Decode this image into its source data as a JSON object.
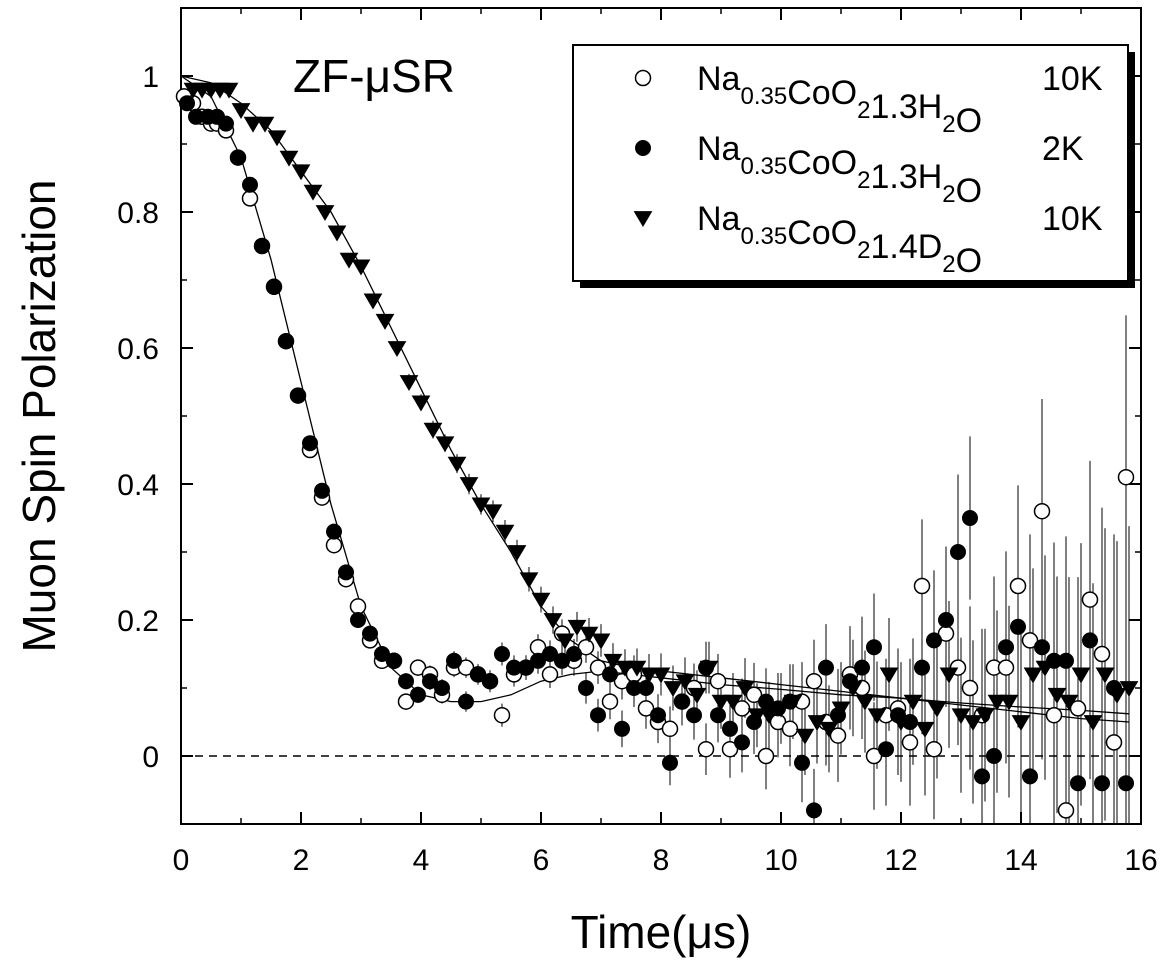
{
  "chart_data": {
    "type": "scatter",
    "title": "",
    "annotation": "ZF-μSR",
    "xlabel": "Time(μs)",
    "ylabel": "Muon Spin Polarization",
    "xlim": [
      0,
      16
    ],
    "ylim": [
      -0.1,
      1.1
    ],
    "xticks": [
      "0",
      "2",
      "4",
      "6",
      "8",
      "10",
      "12",
      "14",
      "16"
    ],
    "yticks": [
      "0",
      "0.2",
      "0.4",
      "0.6",
      "0.8",
      "1"
    ],
    "xtick_values": [
      0,
      2,
      4,
      6,
      8,
      10,
      12,
      14,
      16
    ],
    "ytick_values": [
      0,
      0.2,
      0.4,
      0.6,
      0.8,
      1.0
    ],
    "zero_line": "dashed",
    "grid": false,
    "legend_position": "top-right",
    "series": [
      {
        "key": "h2o_10k",
        "marker": "open-circle",
        "legend": {
          "a": "Na",
          "a_sub": "0.35",
          "b": "CoO",
          "b_sub": "2",
          "c": "1.3H",
          "c_sub": "2",
          "d": "O",
          "temp": "10K"
        },
        "x": [
          0.05,
          0.2,
          0.35,
          0.5,
          0.6,
          0.75,
          0.95,
          1.15,
          1.35,
          1.55,
          1.75,
          1.95,
          2.15,
          2.35,
          2.55,
          2.75,
          2.95,
          3.15,
          3.35,
          3.55,
          3.75,
          3.95,
          4.15,
          4.35,
          4.55,
          4.75,
          4.95,
          5.15,
          5.35,
          5.55,
          5.75,
          5.95,
          6.15,
          6.35,
          6.55,
          6.75,
          6.95,
          7.15,
          7.35,
          7.55,
          7.75,
          7.95,
          8.15,
          8.35,
          8.55,
          8.75,
          8.95,
          9.15,
          9.35,
          9.55,
          9.75,
          9.95,
          10.15,
          10.35,
          10.55,
          10.75,
          10.95,
          11.15,
          11.35,
          11.55,
          11.75,
          11.95,
          12.15,
          12.35,
          12.55,
          12.75,
          12.95,
          13.15,
          13.35,
          13.55,
          13.75,
          13.95,
          14.15,
          14.35,
          14.55,
          14.75,
          14.95,
          15.15,
          15.35,
          15.55,
          15.75
        ],
        "y": [
          0.97,
          0.96,
          0.94,
          0.93,
          0.93,
          0.92,
          0.88,
          0.82,
          0.75,
          0.69,
          0.61,
          0.53,
          0.45,
          0.38,
          0.31,
          0.26,
          0.22,
          0.17,
          0.14,
          0.14,
          0.08,
          0.13,
          0.12,
          0.09,
          0.13,
          0.13,
          0.12,
          0.11,
          0.06,
          0.12,
          0.13,
          0.16,
          0.12,
          0.18,
          0.14,
          0.16,
          0.13,
          0.08,
          0.11,
          0.12,
          0.07,
          0.05,
          0.04,
          0.08,
          0.1,
          0.01,
          0.11,
          0.01,
          0.07,
          0.09,
          0.0,
          0.05,
          0.04,
          0.08,
          0.11,
          0.05,
          0.03,
          0.12,
          0.1,
          0.0,
          0.06,
          0.07,
          0.02,
          0.25,
          0.01,
          0.18,
          0.13,
          0.1,
          0.06,
          0.13,
          0.13,
          0.25,
          0.17,
          0.36,
          0.06,
          -0.08,
          0.07,
          0.23,
          0.15,
          0.02,
          0.41
        ],
        "err": [
          0.005,
          0.005,
          0.005,
          0.005,
          0.006,
          0.006,
          0.006,
          0.007,
          0.007,
          0.007,
          0.008,
          0.008,
          0.008,
          0.009,
          0.009,
          0.009,
          0.01,
          0.01,
          0.011,
          0.011,
          0.012,
          0.012,
          0.013,
          0.013,
          0.014,
          0.015,
          0.015,
          0.016,
          0.017,
          0.018,
          0.018,
          0.019,
          0.02,
          0.021,
          0.022,
          0.023,
          0.024,
          0.026,
          0.027,
          0.028,
          0.03,
          0.031,
          0.033,
          0.035,
          0.036,
          0.038,
          0.04,
          0.042,
          0.044,
          0.047,
          0.049,
          0.052,
          0.055,
          0.058,
          0.061,
          0.064,
          0.068,
          0.071,
          0.075,
          0.079,
          0.083,
          0.088,
          0.093,
          0.098,
          0.103,
          0.108,
          0.114,
          0.12,
          0.127,
          0.134,
          0.141,
          0.148,
          0.156,
          0.165,
          0.174,
          0.183,
          0.193,
          0.204,
          0.215,
          0.226,
          0.238
        ]
      },
      {
        "key": "h2o_2k",
        "marker": "filled-circle",
        "legend": {
          "a": "Na",
          "a_sub": "0.35",
          "b": "CoO",
          "b_sub": "2",
          "c": "1.3H",
          "c_sub": "2",
          "d": "O",
          "temp": "2K"
        },
        "x": [
          0.1,
          0.25,
          0.45,
          0.6,
          0.75,
          0.95,
          1.15,
          1.35,
          1.55,
          1.75,
          1.95,
          2.15,
          2.35,
          2.55,
          2.75,
          2.95,
          3.15,
          3.35,
          3.55,
          3.75,
          3.95,
          4.15,
          4.35,
          4.55,
          4.75,
          4.95,
          5.15,
          5.35,
          5.55,
          5.75,
          5.95,
          6.15,
          6.35,
          6.55,
          6.75,
          6.95,
          7.15,
          7.35,
          7.55,
          7.75,
          7.95,
          8.15,
          8.35,
          8.55,
          8.75,
          8.95,
          9.15,
          9.35,
          9.55,
          9.75,
          9.95,
          10.15,
          10.35,
          10.55,
          10.75,
          10.95,
          11.15,
          11.35,
          11.55,
          11.75,
          11.95,
          12.15,
          12.35,
          12.55,
          12.75,
          12.95,
          13.15,
          13.35,
          13.55,
          13.75,
          13.95,
          14.15,
          14.35,
          14.55,
          14.75,
          14.95,
          15.15,
          15.35,
          15.55,
          15.75
        ],
        "y": [
          0.96,
          0.94,
          0.94,
          0.94,
          0.93,
          0.88,
          0.84,
          0.75,
          0.69,
          0.61,
          0.53,
          0.46,
          0.39,
          0.33,
          0.27,
          0.2,
          0.18,
          0.15,
          0.14,
          0.11,
          0.09,
          0.11,
          0.1,
          0.14,
          0.08,
          0.12,
          0.11,
          0.15,
          0.13,
          0.13,
          0.14,
          0.15,
          0.14,
          0.15,
          0.1,
          0.06,
          0.12,
          0.04,
          0.1,
          0.1,
          0.06,
          -0.01,
          0.08,
          0.06,
          0.13,
          0.06,
          0.04,
          0.02,
          0.05,
          0.08,
          0.07,
          0.08,
          -0.01,
          -0.08,
          0.13,
          0.06,
          0.11,
          0.13,
          0.16,
          0.01,
          0.06,
          0.05,
          0.13,
          0.17,
          0.2,
          0.3,
          0.35,
          -0.03,
          0.0,
          0.16,
          0.19,
          -0.03,
          0.16,
          0.14,
          0.14,
          -0.04,
          0.17,
          -0.04,
          0.1,
          -0.04
        ],
        "err": [
          0.005,
          0.005,
          0.005,
          0.005,
          0.006,
          0.006,
          0.007,
          0.007,
          0.007,
          0.008,
          0.008,
          0.008,
          0.009,
          0.009,
          0.009,
          0.01,
          0.01,
          0.011,
          0.011,
          0.012,
          0.012,
          0.013,
          0.013,
          0.014,
          0.015,
          0.015,
          0.016,
          0.017,
          0.018,
          0.018,
          0.019,
          0.02,
          0.021,
          0.022,
          0.023,
          0.024,
          0.026,
          0.027,
          0.028,
          0.03,
          0.031,
          0.033,
          0.035,
          0.036,
          0.038,
          0.04,
          0.042,
          0.044,
          0.047,
          0.049,
          0.052,
          0.055,
          0.058,
          0.061,
          0.064,
          0.068,
          0.071,
          0.075,
          0.079,
          0.083,
          0.088,
          0.093,
          0.098,
          0.103,
          0.108,
          0.114,
          0.12,
          0.127,
          0.134,
          0.141,
          0.148,
          0.156,
          0.165,
          0.174,
          0.183,
          0.193,
          0.204,
          0.215,
          0.226,
          0.238
        ]
      },
      {
        "key": "d2o_10k",
        "marker": "filled-triangle-down",
        "legend": {
          "a": "Na",
          "a_sub": "0.35",
          "b": "CoO",
          "b_sub": "2",
          "c": "1.4D",
          "c_sub": "2",
          "d": "O",
          "temp": "10K"
        },
        "x": [
          0.2,
          0.35,
          0.5,
          0.65,
          0.8,
          1.0,
          1.2,
          1.4,
          1.6,
          1.8,
          2.0,
          2.2,
          2.4,
          2.6,
          2.8,
          3.0,
          3.2,
          3.4,
          3.6,
          3.8,
          4.0,
          4.2,
          4.4,
          4.6,
          4.8,
          5.0,
          5.2,
          5.4,
          5.6,
          5.8,
          6.0,
          6.2,
          6.4,
          6.6,
          6.8,
          7.0,
          7.2,
          7.4,
          7.6,
          7.8,
          8.0,
          8.2,
          8.4,
          8.6,
          8.8,
          9.0,
          9.2,
          9.4,
          9.6,
          9.8,
          10.0,
          10.2,
          10.4,
          10.6,
          10.8,
          11.0,
          11.2,
          11.4,
          11.6,
          11.8,
          12.0,
          12.2,
          12.4,
          12.6,
          12.8,
          13.0,
          13.2,
          13.4,
          13.6,
          13.8,
          14.0,
          14.2,
          14.4,
          14.6,
          14.8,
          15.0,
          15.2,
          15.4,
          15.6,
          15.8
        ],
        "y": [
          0.98,
          0.98,
          0.98,
          0.98,
          0.98,
          0.95,
          0.93,
          0.93,
          0.91,
          0.88,
          0.86,
          0.83,
          0.8,
          0.77,
          0.73,
          0.72,
          0.67,
          0.64,
          0.6,
          0.55,
          0.52,
          0.48,
          0.46,
          0.43,
          0.4,
          0.37,
          0.36,
          0.33,
          0.3,
          0.26,
          0.23,
          0.2,
          0.17,
          0.19,
          0.18,
          0.17,
          0.14,
          0.13,
          0.13,
          0.12,
          0.12,
          0.1,
          0.11,
          0.09,
          0.13,
          0.08,
          0.08,
          0.1,
          0.06,
          0.06,
          0.07,
          0.08,
          0.03,
          0.05,
          0.04,
          0.07,
          0.1,
          0.08,
          0.06,
          0.12,
          0.05,
          0.08,
          0.04,
          0.07,
          0.12,
          0.06,
          0.05,
          0.06,
          0.08,
          0.08,
          0.05,
          0.12,
          0.13,
          0.09,
          0.08,
          0.12,
          0.05,
          0.12,
          0.09,
          0.1
        ],
        "err": [
          0.005,
          0.005,
          0.005,
          0.005,
          0.006,
          0.006,
          0.007,
          0.007,
          0.007,
          0.008,
          0.008,
          0.008,
          0.009,
          0.009,
          0.009,
          0.01,
          0.01,
          0.011,
          0.011,
          0.012,
          0.012,
          0.013,
          0.013,
          0.014,
          0.015,
          0.015,
          0.016,
          0.017,
          0.018,
          0.018,
          0.019,
          0.02,
          0.021,
          0.022,
          0.023,
          0.024,
          0.026,
          0.027,
          0.028,
          0.03,
          0.031,
          0.033,
          0.035,
          0.036,
          0.038,
          0.04,
          0.042,
          0.044,
          0.047,
          0.049,
          0.052,
          0.055,
          0.058,
          0.061,
          0.064,
          0.068,
          0.071,
          0.075,
          0.079,
          0.083,
          0.088,
          0.093,
          0.098,
          0.103,
          0.108,
          0.114,
          0.12,
          0.127,
          0.134,
          0.141,
          0.148,
          0.156,
          0.165,
          0.174,
          0.183,
          0.193,
          0.204,
          0.215,
          0.226,
          0.238
        ]
      }
    ],
    "fit_curves": [
      {
        "key": "fit_h2o",
        "x": [
          0,
          0.5,
          1.0,
          1.5,
          2.0,
          2.5,
          3.0,
          3.5,
          4.0,
          4.5,
          5.0,
          5.5,
          6.0,
          6.5,
          7.0,
          7.5,
          8.0,
          9.0,
          10.0,
          11.0,
          12.0,
          13.0,
          14.0,
          15.0,
          15.8
        ],
        "y": [
          1.0,
          0.97,
          0.88,
          0.73,
          0.55,
          0.37,
          0.22,
          0.13,
          0.09,
          0.08,
          0.08,
          0.09,
          0.11,
          0.12,
          0.125,
          0.12,
          0.115,
          0.105,
          0.098,
          0.09,
          0.085,
          0.078,
          0.072,
          0.067,
          0.062
        ]
      },
      {
        "key": "fit_d2o",
        "x": [
          0,
          0.5,
          1.0,
          1.5,
          2.0,
          2.5,
          3.0,
          3.5,
          4.0,
          4.5,
          5.0,
          5.5,
          6.0,
          6.5,
          7.0,
          7.5,
          8.0,
          9.0,
          10.0,
          11.0,
          12.0,
          13.0,
          14.0,
          15.0,
          15.8
        ],
        "y": [
          1.0,
          0.99,
          0.96,
          0.92,
          0.86,
          0.8,
          0.72,
          0.63,
          0.54,
          0.45,
          0.37,
          0.3,
          0.22,
          0.17,
          0.14,
          0.13,
          0.125,
          0.115,
          0.105,
          0.095,
          0.085,
          0.075,
          0.065,
          0.055,
          0.05
        ]
      }
    ]
  }
}
